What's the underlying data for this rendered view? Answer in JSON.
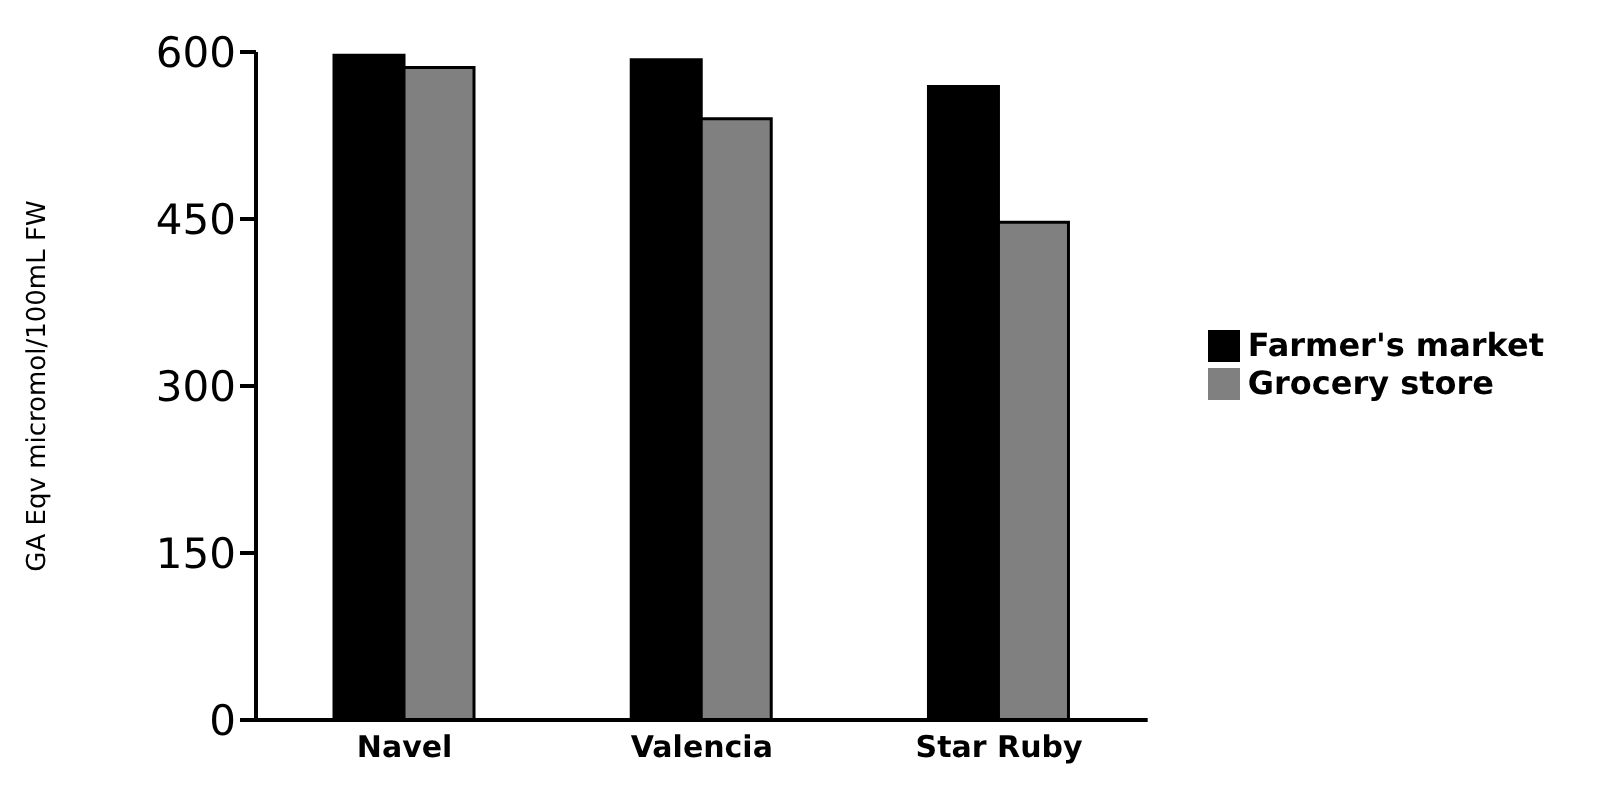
{
  "chart_data": {
    "type": "bar",
    "ylabel": "GA Eqv micromol/100mL FW",
    "categories": [
      "Navel",
      "Valencia",
      "Star Ruby"
    ],
    "series": [
      {
        "name": "Farmer's market",
        "color": "#000000",
        "values": [
          597,
          593,
          569
        ]
      },
      {
        "name": "Grocery store",
        "color": "#808080",
        "values": [
          586,
          540,
          447
        ]
      }
    ],
    "ylim": [
      0,
      600
    ],
    "yticks": [
      0,
      150,
      300,
      450,
      600
    ],
    "grid": false,
    "legend": "right"
  }
}
